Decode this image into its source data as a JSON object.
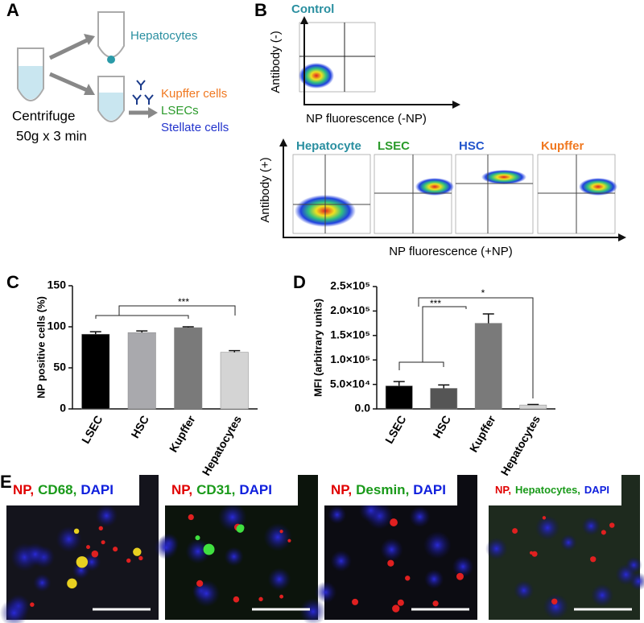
{
  "panel_a": {
    "letter": "A",
    "hepatocytes": "Hepatocytes",
    "kupffer": "Kupffer cells",
    "lsecs": "LSECs",
    "stellate": "Stellate cells",
    "centrifuge": "Centrifuge",
    "speed": "50g x 3 min"
  },
  "panel_b": {
    "letter": "B",
    "control_title": "Control",
    "control_ylabel": "Antibody (-)",
    "control_xlabel": "NP fluorescence (-NP)",
    "plots": [
      {
        "title": "Hepatocyte",
        "color": "#2a8fa0"
      },
      {
        "title": "LSEC",
        "color": "#2a9a2a"
      },
      {
        "title": "HSC",
        "color": "#2255cc"
      },
      {
        "title": "Kupffer",
        "color": "#f07820"
      }
    ],
    "ylabel": "Antibody (+)",
    "xlabel": "NP fluorescence (+NP)"
  },
  "chart_data": [
    {
      "type": "bar",
      "panel": "C",
      "ylabel": "NP positive cells (%)",
      "categories": [
        "LSEC",
        "HSC",
        "Kupffer",
        "Hepatocytes"
      ],
      "values": [
        91,
        93,
        99,
        69
      ],
      "errors": [
        3,
        2,
        1,
        2
      ],
      "colors": [
        "#000000",
        "#a9a9ad",
        "#7a7a7a",
        "#d4d4d4"
      ],
      "ylim": [
        0,
        150
      ],
      "yticks": [
        0,
        50,
        100,
        150
      ],
      "annotations": [
        "***"
      ]
    },
    {
      "type": "bar",
      "panel": "D",
      "ylabel": "MFI (arbitrary units)",
      "categories": [
        "LSEC",
        "HSC",
        "Kupffer",
        "Hepatocytes"
      ],
      "values": [
        47000,
        42000,
        175000,
        8000
      ],
      "errors": [
        9000,
        7000,
        19000,
        1000
      ],
      "colors": [
        "#000000",
        "#555555",
        "#7a7a7a",
        "#d4d4d4"
      ],
      "ylim": [
        0,
        250000
      ],
      "yticks": [
        {
          "value": 0,
          "label": "0.0"
        },
        {
          "value": 50000,
          "label": "5.0×10⁴"
        },
        {
          "value": 100000,
          "label": "1.0×10⁵"
        },
        {
          "value": 150000,
          "label": "1.5×10⁵"
        },
        {
          "value": 200000,
          "label": "2.0×10⁵"
        },
        {
          "value": 250000,
          "label": "2.5×10⁵"
        }
      ],
      "annotations": [
        "***",
        "*"
      ]
    }
  ],
  "panel_e": {
    "letter": "E",
    "images": [
      {
        "label": [
          {
            "text": "NP,",
            "color": "#e00000"
          },
          {
            "text": "CD68,",
            "color": "#1a9a1a"
          },
          {
            "text": "DAPI",
            "color": "#1020dd"
          }
        ]
      },
      {
        "label": [
          {
            "text": "NP,",
            "color": "#e00000"
          },
          {
            "text": "CD31,",
            "color": "#1a9a1a"
          },
          {
            "text": "DAPI",
            "color": "#1020dd"
          }
        ]
      },
      {
        "label": [
          {
            "text": "NP,",
            "color": "#e00000"
          },
          {
            "text": "Desmin,",
            "color": "#1a9a1a"
          },
          {
            "text": "DAPI",
            "color": "#1020dd"
          }
        ]
      },
      {
        "label": [
          {
            "text": "NP,",
            "color": "#e00000"
          },
          {
            "text": "Hepatocytes,",
            "color": "#1a9a1a"
          },
          {
            "text": "DAPI",
            "color": "#1020dd"
          }
        ]
      }
    ]
  }
}
